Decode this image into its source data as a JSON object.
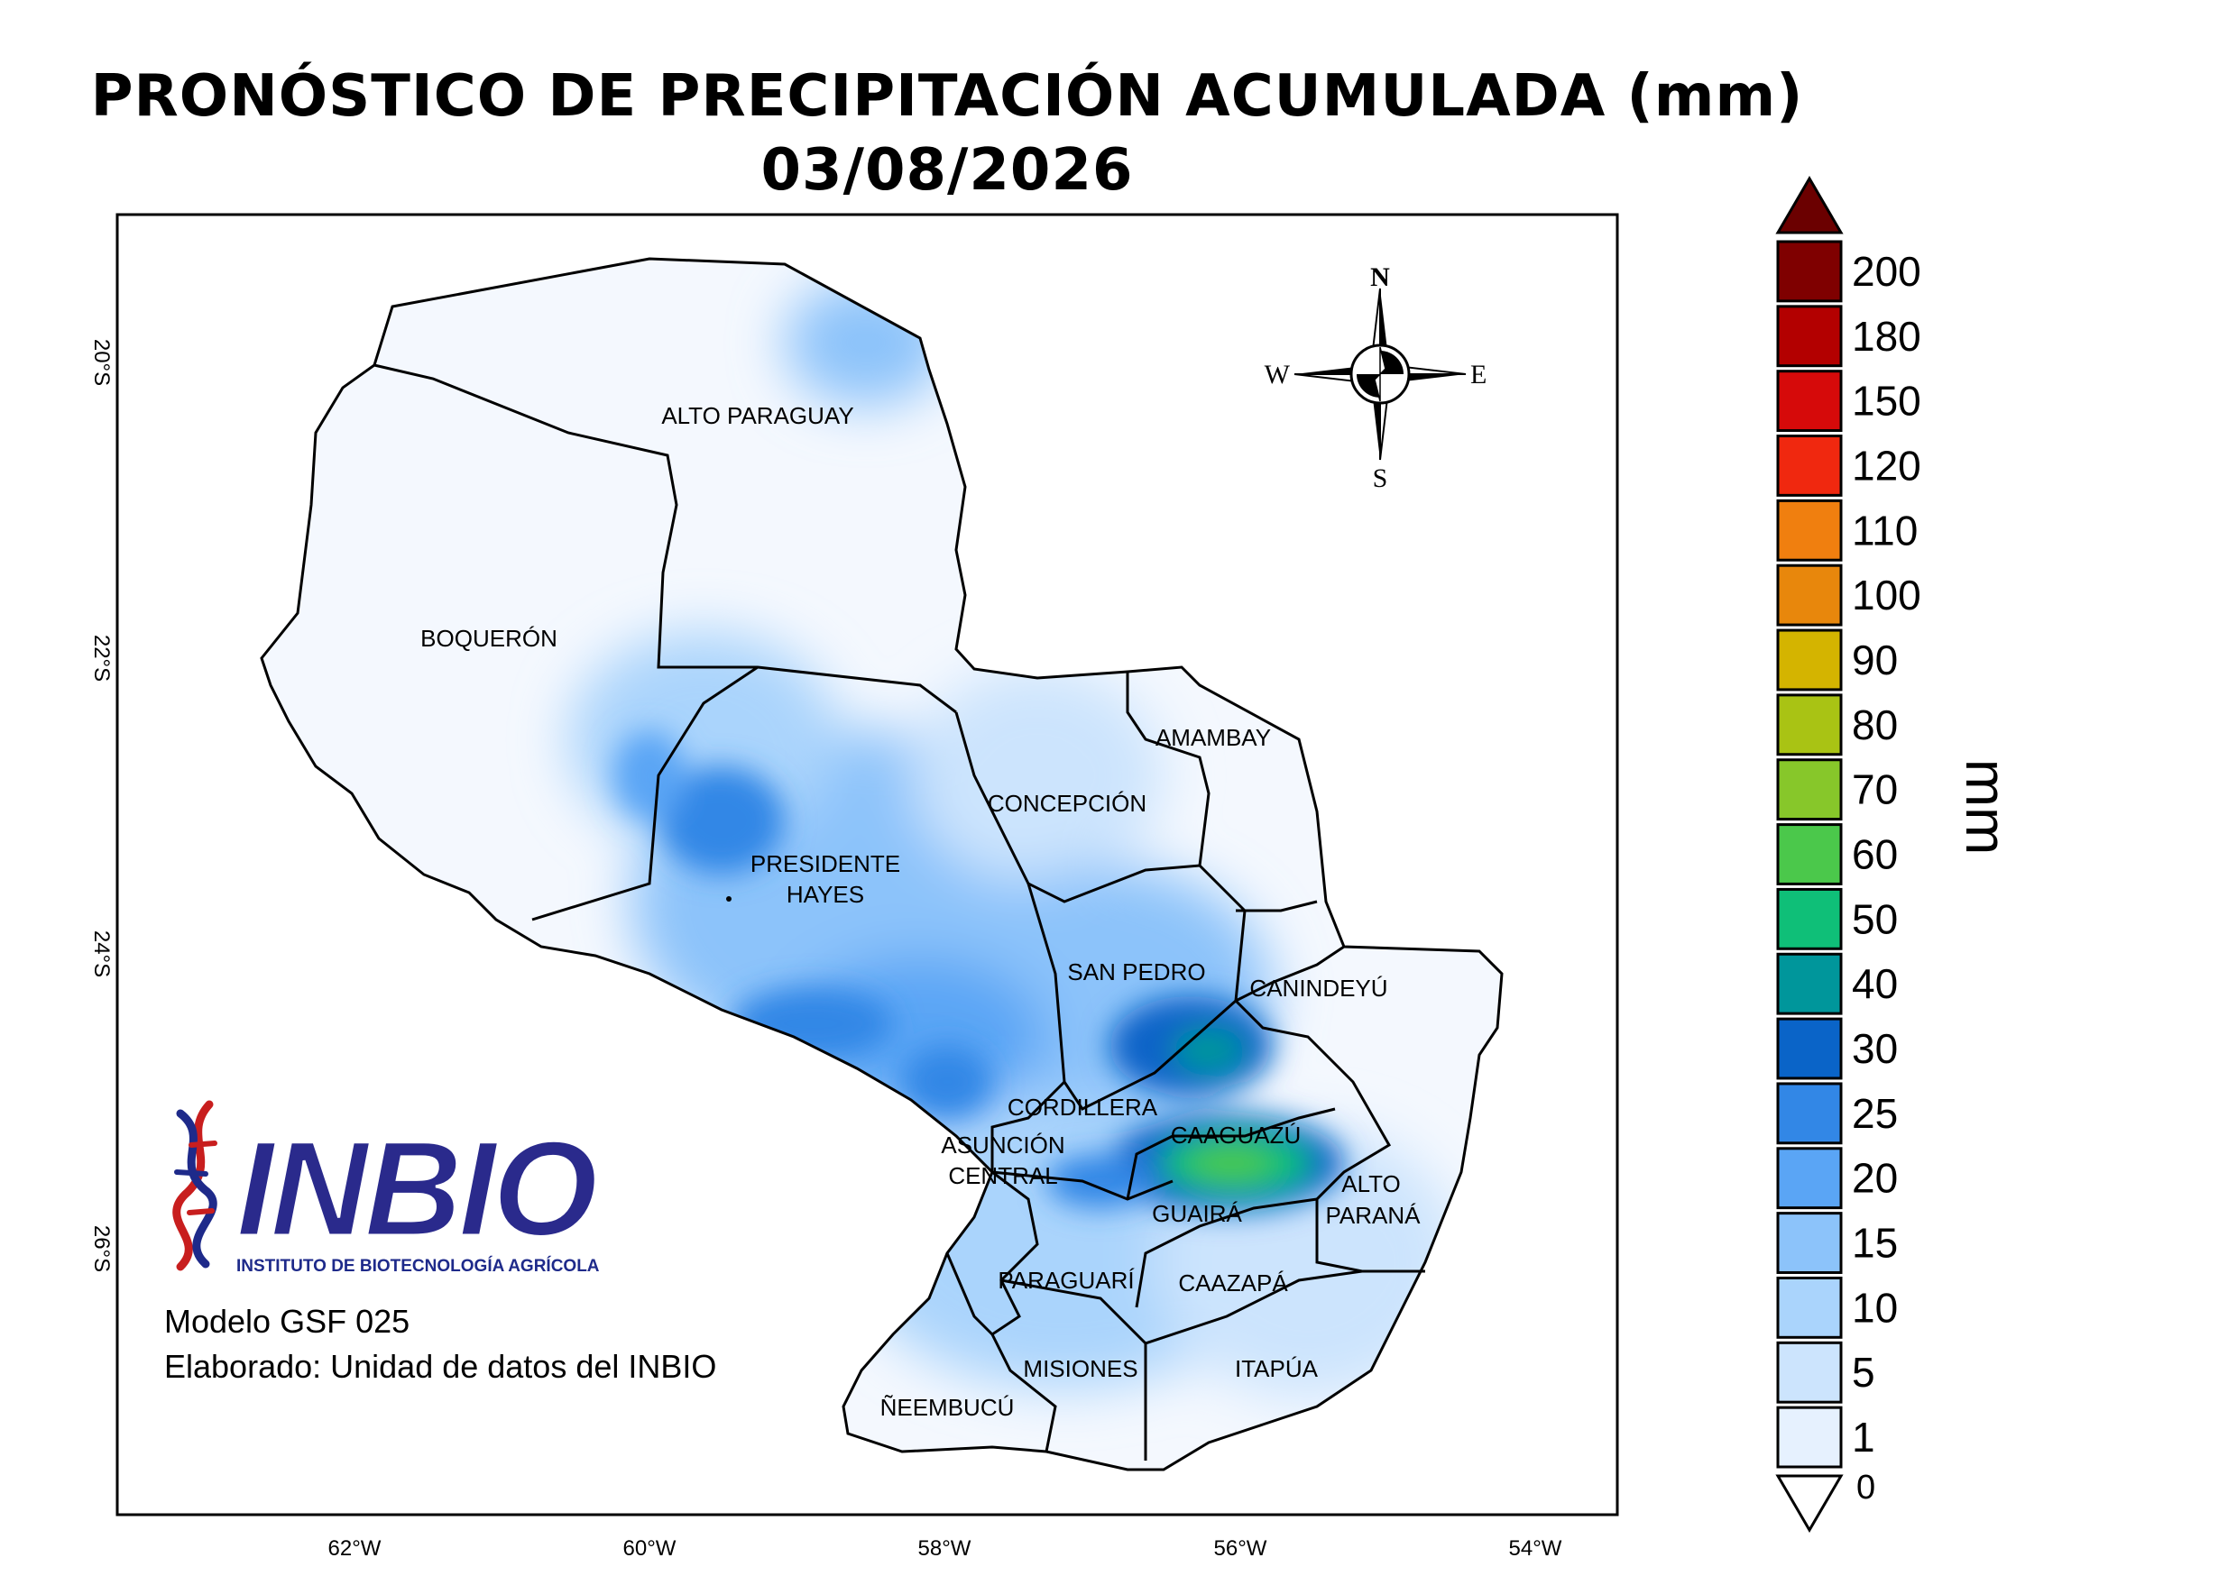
{
  "title": {
    "line1": "PRONÓSTICO DE PRECIPITACIÓN ACUMULADA (mm)",
    "line2": "03/08/2026"
  },
  "map": {
    "lat_ticks": [
      "20°S",
      "22°S",
      "24°S",
      "26°S"
    ],
    "lon_ticks": [
      "62°W",
      "60°W",
      "58°W",
      "56°W",
      "54°W"
    ],
    "compass": {
      "n": "N",
      "s": "S",
      "e": "E",
      "w": "W"
    },
    "departments": [
      "ALTO PARAGUAY",
      "BOQUERÓN",
      "PRESIDENTE",
      "HAYES",
      "CONCEPCIÓN",
      "AMAMBAY",
      "SAN PEDRO",
      "CANINDEYÚ",
      "CORDILLERA",
      "CAAGUAZÚ",
      "ASUNCIÓN",
      "CENTRAL",
      "ALTO",
      "PARANÁ",
      "GUAIRÁ",
      "PARAGUARÍ",
      "CAAZAPÁ",
      "MISIONES",
      "ITAPÚA",
      "ÑEEMBUCÚ"
    ]
  },
  "logo": {
    "name": "INBIO",
    "subtitle": "INSTITUTO DE BIOTECNOLOGÍA AGRÍCOLA"
  },
  "credits": {
    "model": "Modelo GSF 025",
    "author": "Elaborado: Unidad de datos del INBIO"
  },
  "legend": {
    "unit": "mm",
    "levels": [
      {
        "label": "200",
        "color": "#7f0000"
      },
      {
        "label": "180",
        "color": "#b30000"
      },
      {
        "label": "150",
        "color": "#d60a0a"
      },
      {
        "label": "120",
        "color": "#f0280f"
      },
      {
        "label": "110",
        "color": "#f07f0f"
      },
      {
        "label": "100",
        "color": "#e8870c"
      },
      {
        "label": "90",
        "color": "#d4b400"
      },
      {
        "label": "80",
        "color": "#a9c314"
      },
      {
        "label": "70",
        "color": "#87c72a"
      },
      {
        "label": "60",
        "color": "#4bc84b"
      },
      {
        "label": "50",
        "color": "#0fbf78"
      },
      {
        "label": "40",
        "color": "#00969b"
      },
      {
        "label": "30",
        "color": "#0a64c8"
      },
      {
        "label": "25",
        "color": "#3287e6"
      },
      {
        "label": "20",
        "color": "#5aa5f5"
      },
      {
        "label": "15",
        "color": "#8cc3fa"
      },
      {
        "label": "10",
        "color": "#aad4fc"
      },
      {
        "label": "5",
        "color": "#cce4fd"
      },
      {
        "label": "1",
        "color": "#e6f1fe"
      }
    ],
    "over_color": "#6b0000",
    "zero_label": "0"
  }
}
